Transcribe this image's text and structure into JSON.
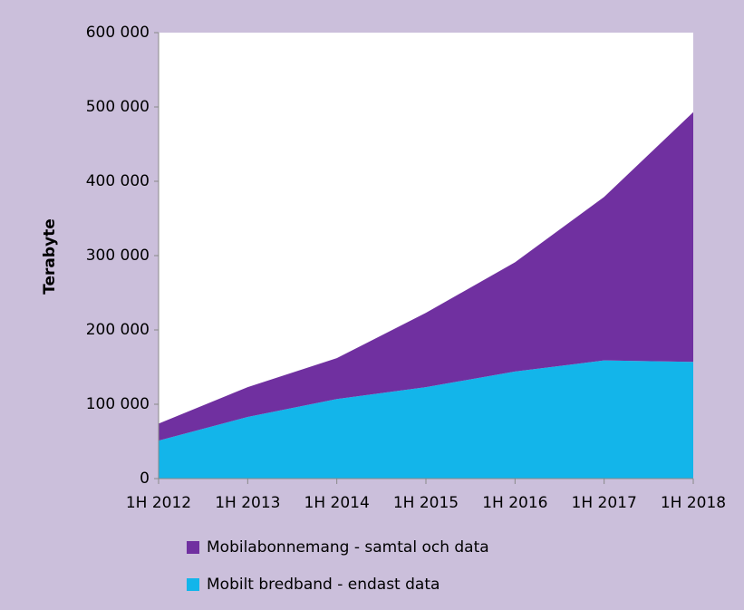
{
  "chart_data": {
    "type": "stacked_area",
    "ylabel": "Terabyte",
    "categories": [
      "1H 2012",
      "1H 2013",
      "1H 2014",
      "1H 2015",
      "1H 2016",
      "1H 2017",
      "1H 2018"
    ],
    "series": [
      {
        "name": "Mobilabonnemang - samtal och data",
        "color": "#7030a0",
        "values": [
          23000,
          40000,
          55000,
          100000,
          147000,
          220000,
          336000
        ]
      },
      {
        "name": "Mobilt bredband - endast data",
        "color": "#13b5ea",
        "values": [
          51000,
          83000,
          107000,
          123000,
          144000,
          159000,
          157000
        ]
      }
    ],
    "ylim": [
      0,
      600000
    ],
    "yticks": [
      0,
      {
        "value": 100000,
        "label": "100 000"
      },
      {
        "value": 200000,
        "label": "200 000"
      },
      {
        "value": 300000,
        "label": "300 000"
      },
      {
        "value": 400000,
        "label": "400 000"
      },
      {
        "value": 500000,
        "label": "500 000"
      },
      {
        "value": 600000,
        "label": "600 000"
      }
    ]
  }
}
